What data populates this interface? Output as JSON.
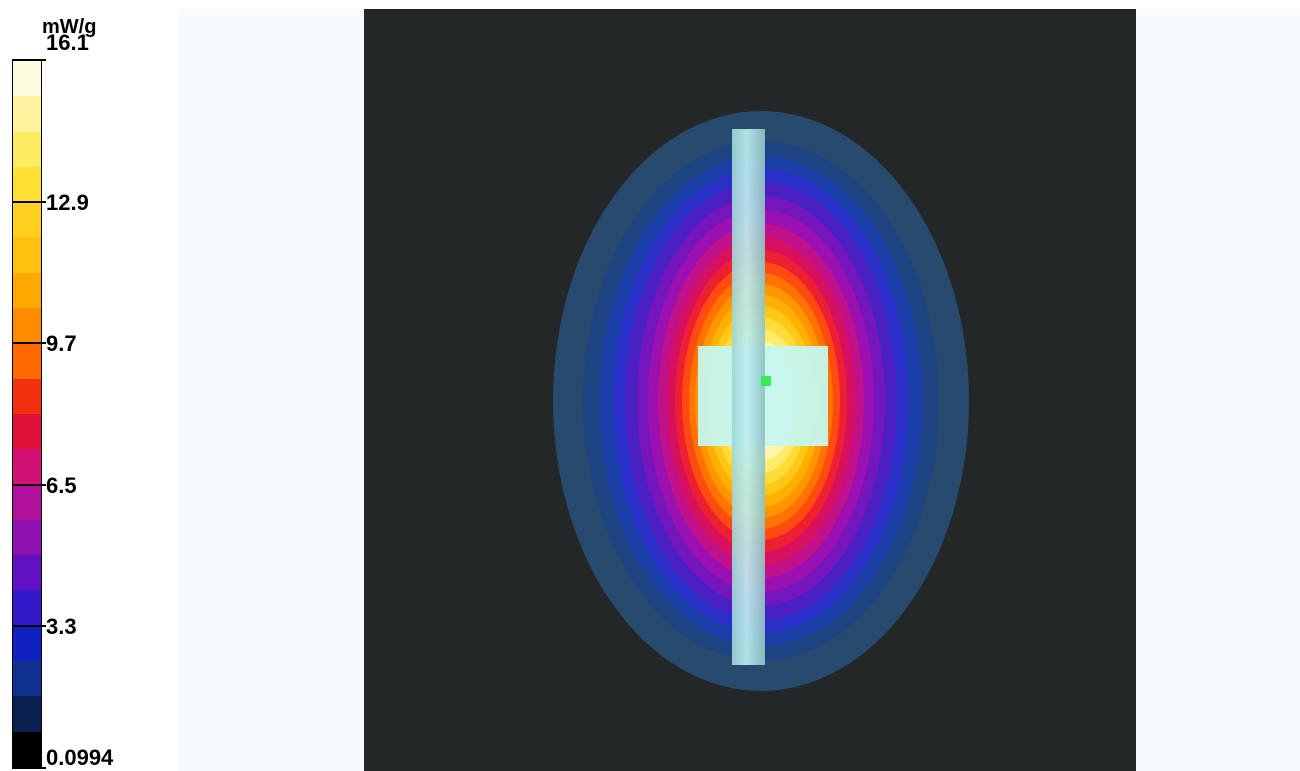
{
  "chart_data": {
    "type": "heatmap",
    "colorbar": {
      "unit": "mW/g",
      "min": 0.0994,
      "max": 16.1,
      "tick_labels": [
        "16.1",
        "12.9",
        "9.7",
        "6.5",
        "3.3",
        "0.0994"
      ],
      "tick_values": [
        16.1,
        12.9,
        9.7,
        6.5,
        3.3,
        0.0994
      ],
      "levels": 20,
      "colors_top_to_bottom": [
        "#fffde0",
        "#fff5a0",
        "#ffec60",
        "#ffe030",
        "#ffd020",
        "#ffc010",
        "#ffa800",
        "#ff8c00",
        "#ff6a00",
        "#f23010",
        "#e0103a",
        "#d01075",
        "#b0109a",
        "#9010b0",
        "#6010c0",
        "#3018c8",
        "#1020c0",
        "#103090",
        "#0a2050",
        "#000000"
      ]
    },
    "colors": {
      "background_panel": "#f7fbff",
      "phantom_dark": "#232727",
      "outer_contour": "#274a6e",
      "probe_rod": "#bfeeee",
      "peak_square": "#c6f5ee",
      "peak_marker": "#33ee55"
    }
  }
}
